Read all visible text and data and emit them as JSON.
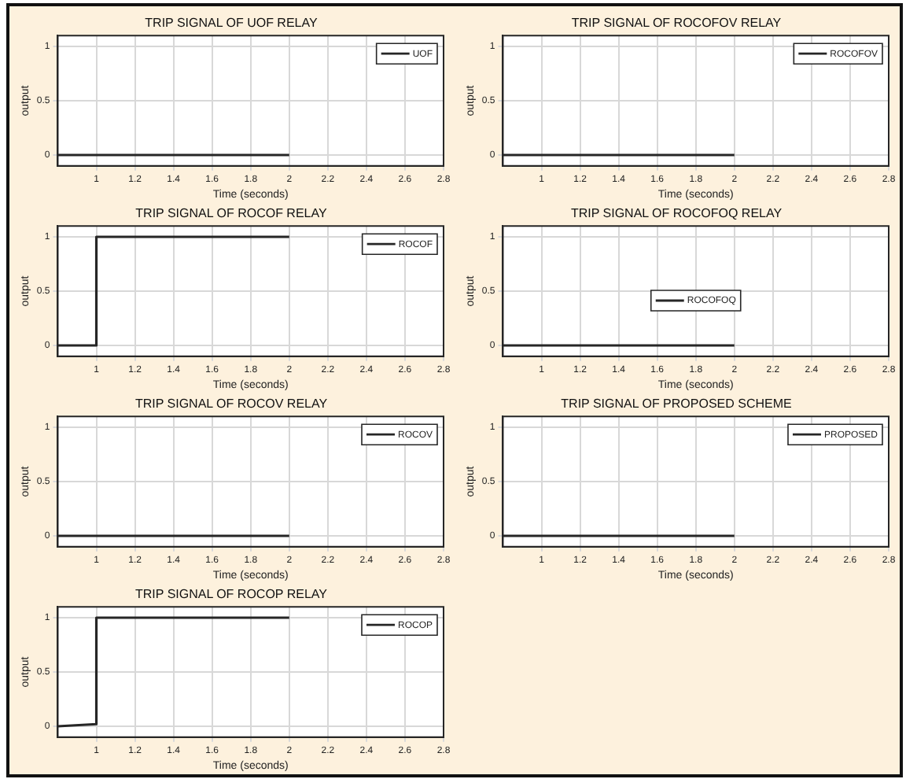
{
  "chart_data": [
    {
      "type": "line",
      "title": "TRIP SIGNAL OF UOF RELAY",
      "xlabel": "Time (seconds)",
      "ylabel": "output",
      "xlim": [
        0.8,
        2.8
      ],
      "ylim": [
        -0.1,
        1.1
      ],
      "xticks": [
        1,
        1.2,
        1.4,
        1.6,
        1.8,
        2,
        2.2,
        2.4,
        2.6,
        2.8
      ],
      "yticks": [
        0,
        0.5,
        1
      ],
      "grid": true,
      "legend": "top right",
      "line_style": "solid",
      "marker": "none",
      "series": [
        {
          "name": "UOF",
          "color": "#262626",
          "x": [
            0.8,
            2
          ],
          "values": [
            0,
            0
          ]
        }
      ]
    },
    {
      "type": "line",
      "title": "TRIP SIGNAL OF ROCOFOV RELAY",
      "xlabel": "Time (seconds)",
      "ylabel": "output",
      "xlim": [
        0.8,
        2.8
      ],
      "ylim": [
        -0.1,
        1.1
      ],
      "xticks": [
        1,
        1.2,
        1.4,
        1.6,
        1.8,
        2,
        2.2,
        2.4,
        2.6,
        2.8
      ],
      "yticks": [
        0,
        0.5,
        1
      ],
      "grid": true,
      "legend": "top right",
      "line_style": "solid",
      "marker": "none",
      "series": [
        {
          "name": "ROCOFOV",
          "color": "#262626",
          "x": [
            0.8,
            2
          ],
          "values": [
            0,
            0
          ]
        }
      ]
    },
    {
      "type": "line",
      "title": "TRIP SIGNAL OF ROCOF RELAY",
      "xlabel": "Time (seconds)",
      "ylabel": "output",
      "xlim": [
        0.8,
        2.8
      ],
      "ylim": [
        -0.1,
        1.1
      ],
      "xticks": [
        1,
        1.2,
        1.4,
        1.6,
        1.8,
        2,
        2.2,
        2.4,
        2.6,
        2.8
      ],
      "yticks": [
        0,
        0.5,
        1
      ],
      "grid": true,
      "legend": "top right",
      "line_style": "solid",
      "marker": "none",
      "series": [
        {
          "name": "ROCOF",
          "color": "#262626",
          "x": [
            0.8,
            1,
            1,
            2
          ],
          "values": [
            0,
            0,
            1,
            1
          ]
        }
      ]
    },
    {
      "type": "line",
      "title": "TRIP SIGNAL OF ROCOFOQ RELAY",
      "xlabel": "Time (seconds)",
      "ylabel": "output",
      "xlim": [
        0.8,
        2.8
      ],
      "ylim": [
        -0.1,
        1.1
      ],
      "xticks": [
        1,
        1.2,
        1.4,
        1.6,
        1.8,
        2,
        2.2,
        2.4,
        2.6,
        2.8
      ],
      "yticks": [
        0,
        0.5,
        1
      ],
      "grid": true,
      "legend": "center",
      "line_style": "solid",
      "marker": "none",
      "series": [
        {
          "name": "ROCOFOQ",
          "color": "#262626",
          "x": [
            0.8,
            2
          ],
          "values": [
            0,
            0
          ]
        }
      ]
    },
    {
      "type": "line",
      "title": "TRIP SIGNAL OF ROCOV RELAY",
      "xlabel": "Time (seconds)",
      "ylabel": "output",
      "xlim": [
        0.8,
        2.8
      ],
      "ylim": [
        -0.1,
        1.1
      ],
      "xticks": [
        1,
        1.2,
        1.4,
        1.6,
        1.8,
        2,
        2.2,
        2.4,
        2.6,
        2.8
      ],
      "yticks": [
        0,
        0.5,
        1
      ],
      "grid": true,
      "legend": "top right",
      "line_style": "solid",
      "marker": "none",
      "series": [
        {
          "name": "ROCOV",
          "color": "#262626",
          "x": [
            0.8,
            2
          ],
          "values": [
            0,
            0
          ]
        }
      ]
    },
    {
      "type": "line",
      "title": "TRIP SIGNAL OF PROPOSED SCHEME",
      "xlabel": "Time (seconds)",
      "ylabel": "output",
      "xlim": [
        0.8,
        2.8
      ],
      "ylim": [
        -0.1,
        1.1
      ],
      "xticks": [
        1,
        1.2,
        1.4,
        1.6,
        1.8,
        2,
        2.2,
        2.4,
        2.6,
        2.8
      ],
      "yticks": [
        0,
        0.5,
        1
      ],
      "grid": true,
      "legend": "top right",
      "line_style": "solid",
      "marker": "none",
      "series": [
        {
          "name": "PROPOSED",
          "color": "#262626",
          "x": [
            0.8,
            2
          ],
          "values": [
            0,
            0
          ]
        }
      ]
    },
    {
      "type": "line",
      "title": "TRIP SIGNAL OF ROCOP RELAY",
      "xlabel": "Time (seconds)",
      "ylabel": "output",
      "xlim": [
        0.8,
        2.8
      ],
      "ylim": [
        -0.1,
        1.1
      ],
      "xticks": [
        1,
        1.2,
        1.4,
        1.6,
        1.8,
        2,
        2.2,
        2.4,
        2.6,
        2.8
      ],
      "yticks": [
        0,
        0.5,
        1
      ],
      "grid": true,
      "legend": "top right",
      "line_style": "solid",
      "marker": "none",
      "series": [
        {
          "name": "ROCOP",
          "color": "#262626",
          "x": [
            0.8,
            1,
            1,
            2
          ],
          "values": [
            0,
            0.02,
            1,
            1
          ]
        }
      ]
    }
  ]
}
